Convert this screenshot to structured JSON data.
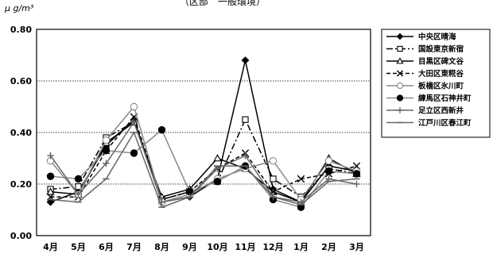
{
  "header": {
    "unit": "μ g/m³",
    "partial_title": "（区部　一般環境）"
  },
  "chart_data": {
    "type": "line",
    "categories": [
      "4月",
      "5月",
      "6月",
      "7月",
      "8月",
      "9月",
      "10月",
      "11月",
      "12月",
      "1月",
      "2月",
      "3月"
    ],
    "ylim": [
      0,
      0.8
    ],
    "yticks": [
      "0.00",
      "0.20",
      "0.40",
      "0.60",
      "0.80"
    ],
    "ytick_values": [
      0,
      0.2,
      0.4,
      0.6,
      0.8
    ],
    "grid": "horizontal dotted",
    "legend_position": "right",
    "series": [
      {
        "name": "中央区晴海",
        "marker": "diamond-filled",
        "dash": "solid",
        "color": "#000000",
        "values": [
          0.13,
          0.17,
          0.35,
          0.45,
          0.13,
          0.15,
          0.22,
          0.68,
          0.18,
          0.13,
          0.27,
          0.25
        ]
      },
      {
        "name": "国設東京新宿",
        "marker": "square-open",
        "dash": "dashdot",
        "color": "#000000",
        "values": [
          0.18,
          0.19,
          0.38,
          0.44,
          0.14,
          0.17,
          0.21,
          0.45,
          0.22,
          0.15,
          0.26,
          0.24
        ]
      },
      {
        "name": "目黒区碑文谷",
        "marker": "triangle-open",
        "dash": "solid",
        "color": "#000000",
        "values": [
          0.17,
          0.16,
          0.36,
          0.44,
          0.15,
          0.18,
          0.3,
          0.26,
          0.17,
          0.13,
          0.3,
          0.24
        ]
      },
      {
        "name": "大田区東糀谷",
        "marker": "x",
        "dash": "dashed",
        "color": "#000000",
        "values": [
          0.15,
          0.15,
          0.33,
          0.46,
          0.14,
          0.17,
          0.26,
          0.32,
          0.17,
          0.22,
          0.24,
          0.27
        ]
      },
      {
        "name": "板橋区氷川町",
        "marker": "circle-open",
        "dash": "solid",
        "color": "#888888",
        "values": [
          0.29,
          0.16,
          0.37,
          0.5,
          0.13,
          0.16,
          0.22,
          0.26,
          0.29,
          0.14,
          0.29,
          0.25
        ]
      },
      {
        "name": "練馬区石神井町",
        "marker": "circle-filled",
        "dash": "solid",
        "color": "#888888",
        "values": [
          0.23,
          0.22,
          0.33,
          0.32,
          0.41,
          0.17,
          0.21,
          0.27,
          0.14,
          0.11,
          0.25,
          0.24
        ]
      },
      {
        "name": "足立区西新井",
        "marker": "plus",
        "dash": "solid",
        "color": "#666666",
        "values": [
          0.31,
          0.16,
          0.28,
          0.44,
          0.13,
          0.15,
          0.26,
          0.31,
          0.15,
          0.13,
          0.22,
          0.2
        ]
      },
      {
        "name": "江戸川区春江町",
        "marker": "dash",
        "dash": "solid",
        "color": "#666666",
        "values": [
          0.14,
          0.13,
          0.22,
          0.4,
          0.11,
          0.15,
          0.27,
          0.27,
          0.15,
          0.12,
          0.21,
          0.22
        ]
      }
    ]
  }
}
